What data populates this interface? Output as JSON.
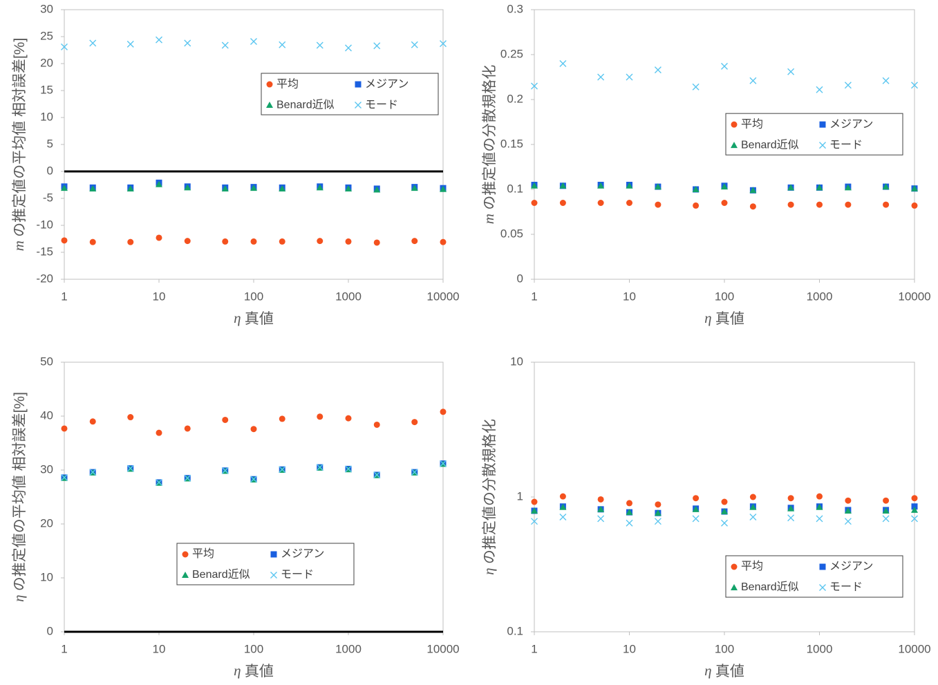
{
  "chart_data": [
    {
      "type": "scatter",
      "x_label": "η 真値",
      "y_label": "m の推定値の平均値 相対誤差[%]",
      "x": [
        1,
        2,
        5,
        10,
        20,
        50,
        100,
        200,
        500,
        1000,
        2000,
        5000,
        10000
      ],
      "xlim": [
        1,
        10000
      ],
      "xticks": [
        1,
        10,
        100,
        1000,
        10000
      ],
      "xscale": "log",
      "ylim": [
        -20,
        30
      ],
      "yticks": [
        -20,
        -15,
        -10,
        -5,
        0,
        5,
        10,
        15,
        20,
        25,
        30
      ],
      "zero_line": true,
      "legend": "upper right",
      "series": [
        {
          "name": "平均",
          "color": "#f4511e",
          "marker": "circle",
          "values": [
            -12.8,
            -13.1,
            -13.1,
            -12.3,
            -12.9,
            -13.0,
            -13.0,
            -13.0,
            -12.9,
            -13.0,
            -13.2,
            -12.9,
            -13.1
          ]
        },
        {
          "name": "メジアン",
          "color": "#1a5fe0",
          "marker": "square",
          "values": [
            -2.8,
            -3.0,
            -3.0,
            -2.1,
            -2.8,
            -3.0,
            -2.9,
            -3.0,
            -2.8,
            -3.0,
            -3.2,
            -2.9,
            -3.1
          ]
        },
        {
          "name": "Benard近似",
          "color": "#14a36a",
          "marker": "triangle",
          "values": [
            -3.1,
            -3.2,
            -3.2,
            -2.4,
            -3.0,
            -3.2,
            -3.1,
            -3.2,
            -3.0,
            -3.2,
            -3.4,
            -3.1,
            -3.3
          ]
        },
        {
          "name": "モード",
          "color": "#5bc6f0",
          "marker": "x",
          "values": [
            23.1,
            23.8,
            23.6,
            24.4,
            23.8,
            23.4,
            24.1,
            23.5,
            23.4,
            22.9,
            23.3,
            23.5,
            23.7
          ]
        }
      ]
    },
    {
      "type": "scatter",
      "x_label": "η 真値",
      "y_label": "m の推定値の分散規格化",
      "x": [
        1,
        2,
        5,
        10,
        20,
        50,
        100,
        200,
        500,
        1000,
        2000,
        5000,
        10000
      ],
      "xlim": [
        1,
        10000
      ],
      "xticks": [
        1,
        10,
        100,
        1000,
        10000
      ],
      "xscale": "log",
      "ylim": [
        0,
        0.3
      ],
      "yticks": [
        0,
        0.05,
        0.1,
        0.15,
        0.2,
        0.25,
        0.3
      ],
      "zero_line": false,
      "legend": "center right",
      "series": [
        {
          "name": "平均",
          "color": "#f4511e",
          "marker": "circle",
          "values": [
            0.085,
            0.085,
            0.085,
            0.085,
            0.083,
            0.082,
            0.085,
            0.081,
            0.083,
            0.083,
            0.083,
            0.083,
            0.082
          ]
        },
        {
          "name": "メジアン",
          "color": "#1a5fe0",
          "marker": "square",
          "values": [
            0.105,
            0.104,
            0.105,
            0.105,
            0.103,
            0.1,
            0.104,
            0.099,
            0.102,
            0.102,
            0.103,
            0.103,
            0.101
          ]
        },
        {
          "name": "Benard近似",
          "color": "#14a36a",
          "marker": "triangle",
          "values": [
            0.104,
            0.104,
            0.104,
            0.104,
            0.103,
            0.1,
            0.103,
            0.099,
            0.102,
            0.102,
            0.102,
            0.103,
            0.101
          ]
        },
        {
          "name": "モード",
          "color": "#5bc6f0",
          "marker": "x",
          "values": [
            0.215,
            0.24,
            0.225,
            0.225,
            0.233,
            0.214,
            0.237,
            0.221,
            0.231,
            0.211,
            0.216,
            0.221,
            0.216
          ]
        }
      ]
    },
    {
      "type": "scatter",
      "x_label": "η 真値",
      "y_label": "η の推定値の平均値 相対誤差[%]",
      "x": [
        1,
        2,
        5,
        10,
        20,
        50,
        100,
        200,
        500,
        1000,
        2000,
        5000,
        10000
      ],
      "xlim": [
        1,
        10000
      ],
      "xticks": [
        1,
        10,
        100,
        1000,
        10000
      ],
      "xscale": "log",
      "ylim": [
        0,
        50
      ],
      "yticks": [
        0,
        10,
        20,
        30,
        40,
        50
      ],
      "zero_line": true,
      "legend": "lower center",
      "series": [
        {
          "name": "平均",
          "color": "#f4511e",
          "marker": "circle",
          "values": [
            37.7,
            39.0,
            39.8,
            36.9,
            37.7,
            39.3,
            37.6,
            39.5,
            39.9,
            39.6,
            38.4,
            38.9,
            40.8
          ]
        },
        {
          "name": "メジアン",
          "color": "#1a5fe0",
          "marker": "square",
          "values": [
            28.6,
            29.6,
            30.3,
            27.7,
            28.5,
            29.9,
            28.3,
            30.1,
            30.5,
            30.2,
            29.1,
            29.6,
            31.2
          ]
        },
        {
          "name": "Benard近似",
          "color": "#14a36a",
          "marker": "triangle",
          "values": [
            28.5,
            29.5,
            30.2,
            27.6,
            28.4,
            29.8,
            28.2,
            30.0,
            30.4,
            30.1,
            29.0,
            29.5,
            31.1
          ]
        },
        {
          "name": "モード",
          "color": "#5bc6f0",
          "marker": "x",
          "values": [
            28.6,
            29.6,
            30.3,
            27.7,
            28.5,
            29.9,
            28.3,
            30.1,
            30.5,
            30.2,
            29.1,
            29.6,
            31.2
          ]
        }
      ]
    },
    {
      "type": "scatter",
      "x_label": "η 真値",
      "y_label": "η の推定値の分散規格化",
      "x": [
        1,
        2,
        5,
        10,
        20,
        50,
        100,
        200,
        500,
        1000,
        2000,
        5000,
        10000
      ],
      "xlim": [
        1,
        10000
      ],
      "xticks": [
        1,
        10,
        100,
        1000,
        10000
      ],
      "xscale": "log",
      "ylim": [
        0.1,
        10
      ],
      "yticks": [
        0.1,
        1,
        10
      ],
      "yscale": "log",
      "zero_line": false,
      "legend": "lower right",
      "series": [
        {
          "name": "平均",
          "color": "#f4511e",
          "marker": "circle",
          "values": [
            0.92,
            1.01,
            0.96,
            0.9,
            0.88,
            0.98,
            0.92,
            1.0,
            0.98,
            1.01,
            0.94,
            0.94,
            0.98
          ]
        },
        {
          "name": "メジアン",
          "color": "#1a5fe0",
          "marker": "square",
          "values": [
            0.79,
            0.85,
            0.81,
            0.77,
            0.76,
            0.82,
            0.78,
            0.85,
            0.83,
            0.85,
            0.8,
            0.8,
            0.85
          ]
        },
        {
          "name": "Benard近似",
          "color": "#14a36a",
          "marker": "triangle",
          "values": [
            0.79,
            0.84,
            0.81,
            0.77,
            0.76,
            0.81,
            0.78,
            0.84,
            0.82,
            0.84,
            0.79,
            0.79,
            0.8
          ]
        },
        {
          "name": "モード",
          "color": "#5bc6f0",
          "marker": "x",
          "values": [
            0.66,
            0.71,
            0.69,
            0.64,
            0.66,
            0.69,
            0.64,
            0.71,
            0.7,
            0.69,
            0.66,
            0.69,
            0.69
          ]
        }
      ]
    }
  ]
}
